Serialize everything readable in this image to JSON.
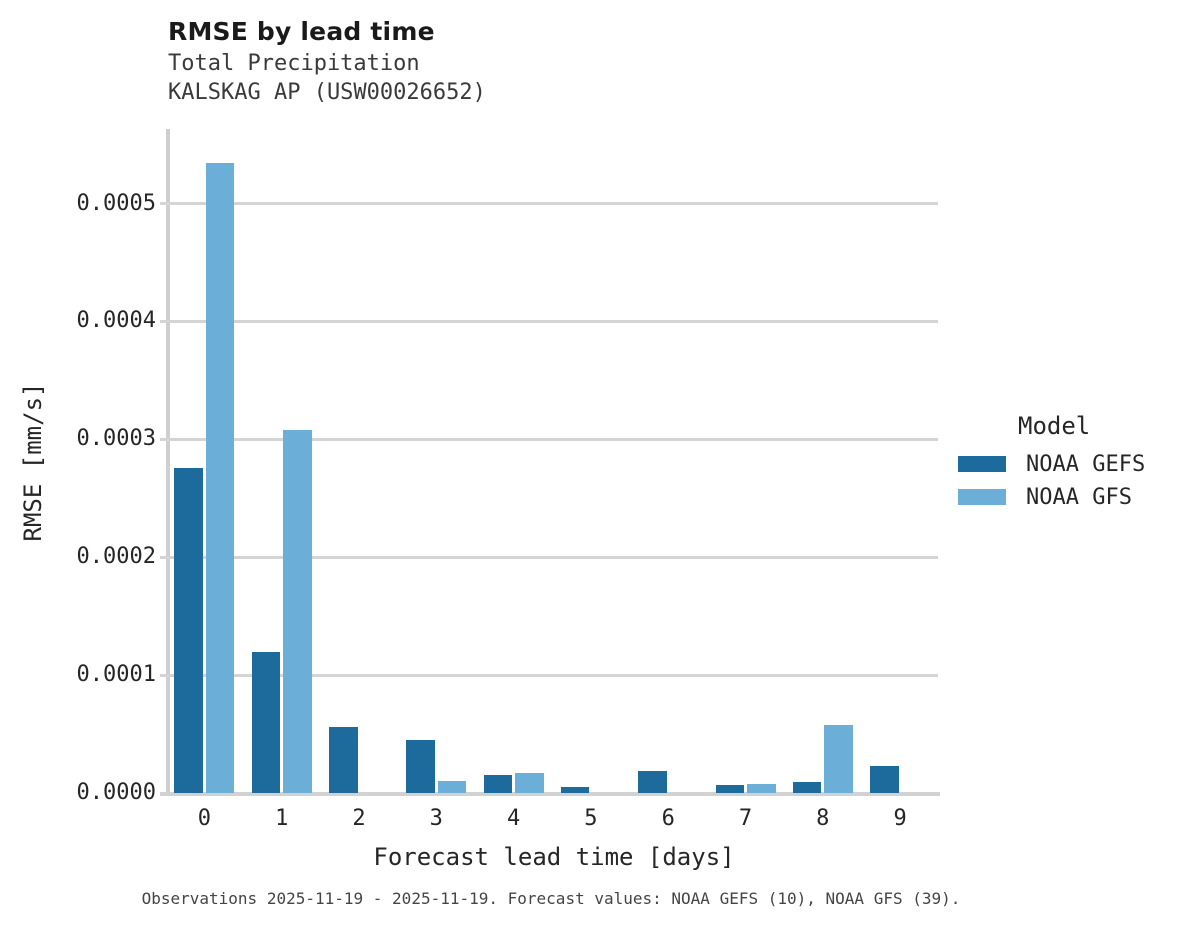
{
  "chart_data": {
    "type": "bar",
    "title": "RMSE by lead time",
    "subtitle_lines": [
      "Total Precipitation",
      "KALSKAG AP (USW00026652)"
    ],
    "xlabel": "Forecast lead time [days]",
    "ylabel": "RMSE [mm/s]",
    "categories": [
      "0",
      "1",
      "2",
      "3",
      "4",
      "5",
      "6",
      "7",
      "8",
      "9"
    ],
    "series": [
      {
        "name": "NOAA GEFS",
        "color": "#1c6b9c",
        "values": [
          0.000276,
          0.00012,
          5.6e-05,
          4.5e-05,
          1.5e-05,
          5e-06,
          1.9e-05,
          7e-06,
          9.5e-06,
          2.25e-05
        ]
      },
      {
        "name": "NOAA GFS",
        "color": "#6bafd8",
        "values": [
          0.000534,
          0.000308,
          0,
          1e-05,
          1.7e-05,
          0,
          0,
          8e-06,
          5.8e-05,
          0
        ]
      }
    ],
    "ylim": [
      0,
      0.00056
    ],
    "ytick_values": [
      0,
      0.0001,
      0.0002,
      0.0003,
      0.0004,
      0.0005
    ],
    "ytick_labels": [
      "0.0000",
      "0.0001",
      "0.0002",
      "0.0003",
      "0.0004",
      "0.0005"
    ],
    "grid": "horizontal-only",
    "legend": {
      "title": "Model",
      "position": "right"
    },
    "caption": "Observations 2025-11-19 - 2025-11-19. Forecast values: NOAA GEFS (10), NOAA GFS (39)."
  }
}
